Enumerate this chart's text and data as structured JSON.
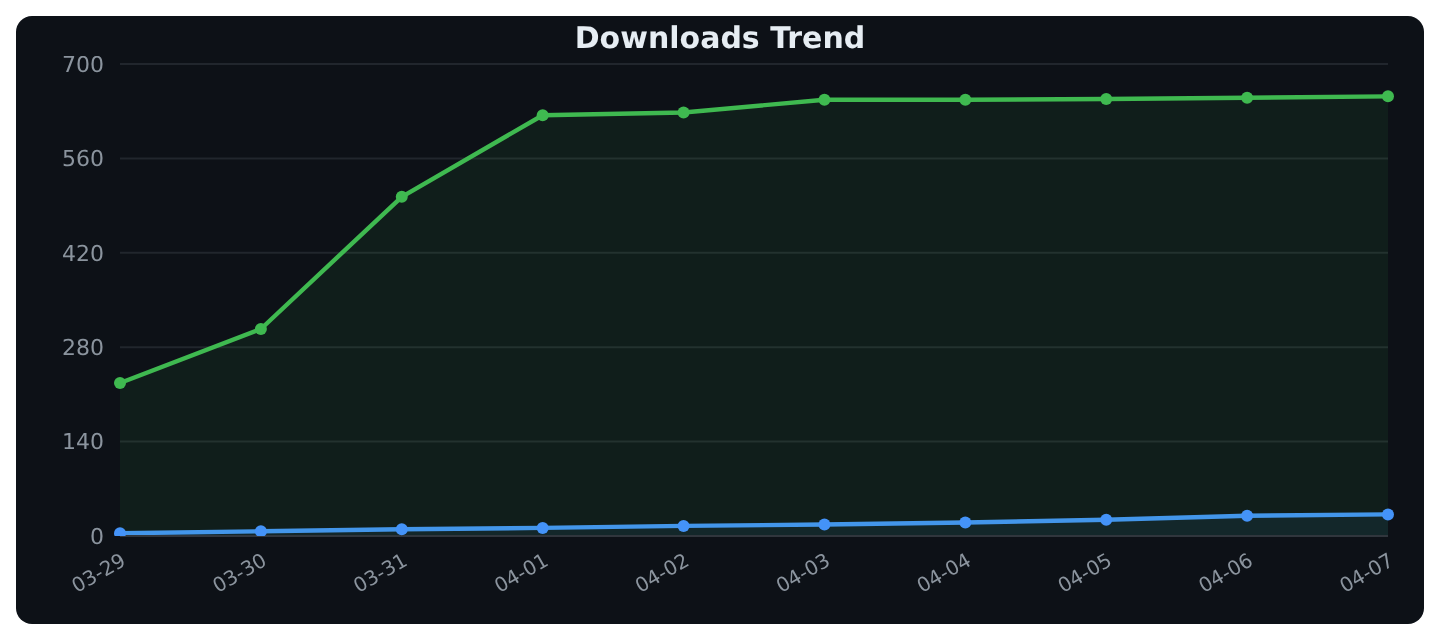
{
  "chart_data": {
    "type": "area",
    "title": "Downloads Trend",
    "categories": [
      "03-29",
      "03-30",
      "03-31",
      "04-01",
      "04-02",
      "04-03",
      "04-04",
      "04-05",
      "04-06",
      "04-07"
    ],
    "series": [
      {
        "color": "#4493f8",
        "values": [
          4,
          7,
          10,
          12,
          15,
          17,
          20,
          24,
          30,
          32
        ]
      },
      {
        "color": "#3fb950",
        "values": [
          227,
          307,
          503,
          624,
          628,
          647,
          647,
          648,
          650,
          652
        ]
      }
    ],
    "ylim": [
      0,
      700
    ],
    "yticks": [
      0,
      140,
      280,
      420,
      560,
      700
    ],
    "grid": "y",
    "marker": "circle",
    "legend": false
  }
}
